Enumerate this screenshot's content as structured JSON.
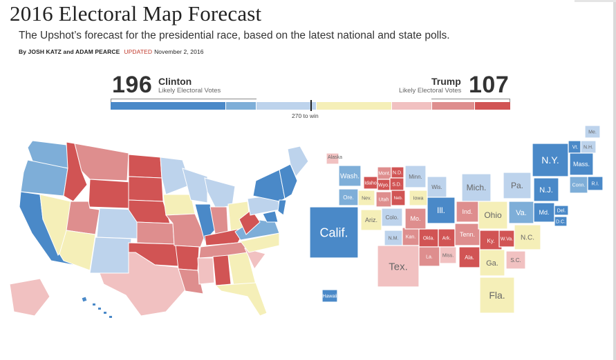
{
  "header": {
    "title": "2016 Electoral Map Forecast",
    "subtitle": "The Upshot’s forecast for the presidential race, based on the latest national and state polls.",
    "byline": "By JOSH KATZ and ADAM PEARCE",
    "updated_label": "UPDATED",
    "date": "November 2, 2016"
  },
  "tally": {
    "left": {
      "votes": "196",
      "name": "Clinton",
      "label": "Likely Electoral Votes"
    },
    "right": {
      "votes": "107",
      "name": "Trump",
      "label": "Likely Electoral Votes"
    },
    "win_label": "270 to win"
  },
  "colors": {
    "solid_d": "#4a89c8",
    "likely_d": "#7eaed8",
    "lean_d": "#bdd3ec",
    "tossup": "#f5efb8",
    "lean_r": "#f1c1c1",
    "likely_r": "#de8e8e",
    "solid_r": "#d15454"
  },
  "bar_segments": [
    {
      "category": "solid_d",
      "fraction": 0.29
    },
    {
      "category": "likely_d",
      "fraction": 0.075
    },
    {
      "category": "lean_d",
      "fraction": 0.15
    },
    {
      "category": "tossup",
      "fraction": 0.19
    },
    {
      "category": "lean_r",
      "fraction": 0.1
    },
    {
      "category": "likely_r",
      "fraction": 0.105
    },
    {
      "category": "solid_r",
      "fraction": 0.09
    }
  ],
  "cartogram": [
    {
      "label": "Alaska",
      "cat": "lean_r"
    },
    {
      "label": "Hawaii",
      "cat": "solid_d"
    },
    {
      "label": "Wash.",
      "cat": "likely_d"
    },
    {
      "label": "Ore.",
      "cat": "likely_d"
    },
    {
      "label": "Calif.",
      "cat": "solid_d"
    },
    {
      "label": "Nev.",
      "cat": "tossup"
    },
    {
      "label": "Idaho",
      "cat": "solid_r"
    },
    {
      "label": "Mont.",
      "cat": "likely_r"
    },
    {
      "label": "N.D.",
      "cat": "solid_r"
    },
    {
      "label": "Wyo.",
      "cat": "solid_r"
    },
    {
      "label": "S.D.",
      "cat": "solid_r"
    },
    {
      "label": "Utah",
      "cat": "likely_r"
    },
    {
      "label": "Neb.",
      "cat": "solid_r"
    },
    {
      "label": "Ariz.",
      "cat": "tossup"
    },
    {
      "label": "Colo.",
      "cat": "lean_d"
    },
    {
      "label": "N.M.",
      "cat": "lean_d"
    },
    {
      "label": "Kan.",
      "cat": "likely_r"
    },
    {
      "label": "Okla.",
      "cat": "solid_r"
    },
    {
      "label": "Tex.",
      "cat": "lean_r"
    },
    {
      "label": "Minn.",
      "cat": "lean_d"
    },
    {
      "label": "Iowa",
      "cat": "tossup"
    },
    {
      "label": "Mo.",
      "cat": "likely_r"
    },
    {
      "label": "Ark.",
      "cat": "solid_r"
    },
    {
      "label": "La.",
      "cat": "likely_r"
    },
    {
      "label": "Wis.",
      "cat": "lean_d"
    },
    {
      "label": "Ill.",
      "cat": "solid_d"
    },
    {
      "label": "Miss.",
      "cat": "lean_r"
    },
    {
      "label": "Mich.",
      "cat": "lean_d"
    },
    {
      "label": "Ind.",
      "cat": "likely_r"
    },
    {
      "label": "Tenn.",
      "cat": "likely_r"
    },
    {
      "label": "Ala.",
      "cat": "solid_r"
    },
    {
      "label": "Ohio",
      "cat": "tossup"
    },
    {
      "label": "Ky.",
      "cat": "solid_r"
    },
    {
      "label": "W.Va.",
      "cat": "solid_r"
    },
    {
      "label": "Ga.",
      "cat": "tossup"
    },
    {
      "label": "Fla.",
      "cat": "tossup"
    },
    {
      "label": "Pa.",
      "cat": "lean_d"
    },
    {
      "label": "Va.",
      "cat": "likely_d"
    },
    {
      "label": "N.C.",
      "cat": "tossup"
    },
    {
      "label": "S.C.",
      "cat": "lean_r"
    },
    {
      "label": "N.Y.",
      "cat": "solid_d"
    },
    {
      "label": "N.J.",
      "cat": "solid_d"
    },
    {
      "label": "Md.",
      "cat": "solid_d"
    },
    {
      "label": "Del.",
      "cat": "solid_d"
    },
    {
      "label": "D.C.",
      "cat": "solid_d"
    },
    {
      "label": "Vt.",
      "cat": "solid_d"
    },
    {
      "label": "N.H.",
      "cat": "lean_d"
    },
    {
      "label": "Me.",
      "cat": "lean_d"
    },
    {
      "label": "Mass.",
      "cat": "solid_d"
    },
    {
      "label": "Conn.",
      "cat": "likely_d"
    },
    {
      "label": "R.I.",
      "cat": "solid_d"
    }
  ]
}
